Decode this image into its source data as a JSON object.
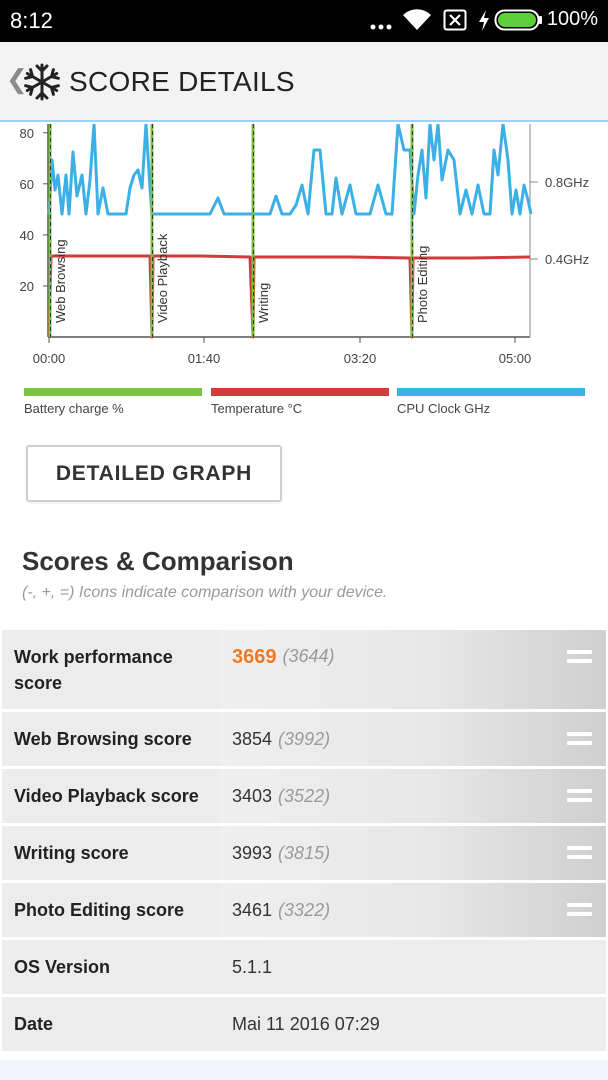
{
  "status_bar": {
    "time": "8:12",
    "battery_percent": "100%",
    "icons": [
      "more-dots-icon",
      "wifi-icon",
      "sim-off-icon",
      "charging-bolt-icon",
      "battery-icon"
    ]
  },
  "app_bar": {
    "title": "SCORE DETAILS",
    "logo_icon": "snowflake-icon",
    "back_icon": "chevron-left-icon"
  },
  "chart_data": {
    "type": "line",
    "x_ticks": [
      "00:00",
      "01:40",
      "03:20",
      "05:00"
    ],
    "y_ticks": [
      20,
      40,
      60,
      80
    ],
    "y2_ticks": [
      "0.4GHz",
      "0.8GHz"
    ],
    "ylim": [
      0,
      85
    ],
    "markers": [
      "Web Browsing",
      "Video Playback",
      "Writing",
      "Photo Editing"
    ],
    "series": [
      {
        "name": "Battery charge %",
        "color": "#7cc242"
      },
      {
        "name": "Temperature °C",
        "color": "#d23b3b"
      },
      {
        "name": "CPU Clock GHz",
        "color": "#3bb0e6"
      }
    ]
  },
  "legend": [
    {
      "label": "Battery charge %",
      "color": "#7cc242"
    },
    {
      "label": "Temperature °C",
      "color": "#d23b3b"
    },
    {
      "label": "CPU Clock GHz",
      "color": "#3bb0e6"
    }
  ],
  "detailed_graph_label": "DETAILED GRAPH",
  "scores": {
    "title": "Scores & Comparison",
    "subtitle": "(-, +, =) Icons indicate comparison with your device.",
    "rows": [
      {
        "label": "Work performance score",
        "value": "3669",
        "compare": "(3644)",
        "icon": "equal-icon"
      },
      {
        "label": "Web Browsing score",
        "value": "3854",
        "compare": "(3992)",
        "icon": "equal-icon"
      },
      {
        "label": "Video Playback score",
        "value": "3403",
        "compare": "(3522)",
        "icon": "equal-icon"
      },
      {
        "label": "Writing score",
        "value": "3993",
        "compare": "(3815)",
        "icon": "equal-icon"
      },
      {
        "label": "Photo Editing score",
        "value": "3461",
        "compare": "(3322)",
        "icon": "equal-icon"
      },
      {
        "label": "OS Version",
        "value": "5.1.1"
      },
      {
        "label": "Date",
        "value": "Mai 11 2016 07:29"
      }
    ]
  }
}
